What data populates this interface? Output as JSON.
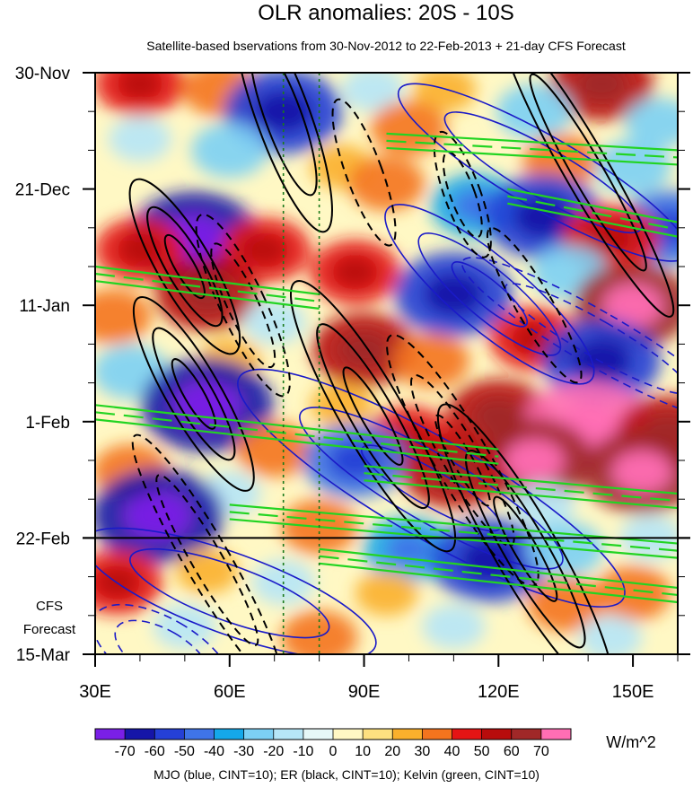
{
  "chart_data": {
    "type": "heatmap",
    "title": "OLR anomalies: 20S - 10S",
    "subtitle": "Satellite-based bservations from 30-Nov-2012 to 22-Feb-2013 + 21-day CFS Forecast",
    "x_tick_labels": [
      "30E",
      "60E",
      "90E",
      "120E",
      "150E"
    ],
    "x_ticks": [
      30,
      60,
      90,
      120,
      150
    ],
    "xlim": [
      30,
      160
    ],
    "y_tick_labels": [
      "30-Nov",
      "21-Dec",
      "11-Jan",
      "1-Feb",
      "22-Feb",
      "15-Mar"
    ],
    "y_ticks": [
      0,
      21,
      42,
      63,
      84,
      105
    ],
    "ylim": [
      0,
      105
    ],
    "forecast_label": [
      "CFS",
      "Forecast"
    ],
    "forecast_start_day": 84,
    "vertical_reference_lines": [
      72,
      80
    ],
    "colorbar": {
      "unit": "W/m^2",
      "tick_labels": [
        "-70",
        "-60",
        "-50",
        "-40",
        "-30",
        "-20",
        "-10",
        "0",
        "10",
        "20",
        "30",
        "40",
        "50",
        "60",
        "70"
      ],
      "colors": [
        "#7a1fe6",
        "#1515a8",
        "#2540d6",
        "#3f74e8",
        "#14a8ea",
        "#7cd0f4",
        "#b6e6f7",
        "#e6f8f8",
        "#fff8c4",
        "#fde080",
        "#fbb02c",
        "#f4741e",
        "#e51414",
        "#b80c0c",
        "#a02828",
        "#ff6eb4"
      ]
    },
    "footer": "MJO (blue, CINT=10); ER (black, CINT=10); Kelvin (green, CINT=10)",
    "contour_series": [
      {
        "name": "MJO",
        "color": "#1a1ac8"
      },
      {
        "name": "ER",
        "color": "#000000"
      },
      {
        "name": "Kelvin",
        "color": "#22d422"
      }
    ],
    "anomaly_blobs": [
      {
        "lon": 40,
        "day": 2,
        "v": 40
      },
      {
        "lon": 58,
        "day": 3,
        "v": 30
      },
      {
        "lon": 72,
        "day": 7,
        "v": -60
      },
      {
        "lon": 92,
        "day": 3,
        "v": -20
      },
      {
        "lon": 108,
        "day": 3,
        "v": 20
      },
      {
        "lon": 143,
        "day": 2,
        "v": 50
      },
      {
        "lon": 128,
        "day": 7,
        "v": -30
      },
      {
        "lon": 156,
        "day": 9,
        "v": -25
      },
      {
        "lon": 100,
        "day": 10,
        "v": 30
      },
      {
        "lon": 40,
        "day": 12,
        "v": -20
      },
      {
        "lon": 60,
        "day": 14,
        "v": -30
      },
      {
        "lon": 85,
        "day": 17,
        "v": 20
      },
      {
        "lon": 134,
        "day": 16,
        "v": 30
      },
      {
        "lon": 150,
        "day": 17,
        "v": -30
      },
      {
        "lon": 95,
        "day": 20,
        "v": 30
      },
      {
        "lon": 115,
        "day": 24,
        "v": -40
      },
      {
        "lon": 130,
        "day": 26,
        "v": -60
      },
      {
        "lon": 158,
        "day": 28,
        "v": -50
      },
      {
        "lon": 52,
        "day": 30,
        "v": -70
      },
      {
        "lon": 40,
        "day": 32,
        "v": 40
      },
      {
        "lon": 68,
        "day": 32,
        "v": 40
      },
      {
        "lon": 145,
        "day": 30,
        "v": 45
      },
      {
        "lon": 88,
        "day": 36,
        "v": 40
      },
      {
        "lon": 110,
        "day": 40,
        "v": -60
      },
      {
        "lon": 136,
        "day": 36,
        "v": -30
      },
      {
        "lon": 55,
        "day": 40,
        "v": 50
      },
      {
        "lon": 150,
        "day": 42,
        "v": 60
      },
      {
        "lon": 34,
        "day": 44,
        "v": 30
      },
      {
        "lon": 70,
        "day": 45,
        "v": -20
      },
      {
        "lon": 90,
        "day": 50,
        "v": 50
      },
      {
        "lon": 128,
        "day": 48,
        "v": 40
      },
      {
        "lon": 105,
        "day": 52,
        "v": 30
      },
      {
        "lon": 143,
        "day": 52,
        "v": -60
      },
      {
        "lon": 38,
        "day": 54,
        "v": -30
      },
      {
        "lon": 60,
        "day": 52,
        "v": 20
      },
      {
        "lon": 55,
        "day": 60,
        "v": -70
      },
      {
        "lon": 85,
        "day": 60,
        "v": 20
      },
      {
        "lon": 120,
        "day": 62,
        "v": 50
      },
      {
        "lon": 140,
        "day": 64,
        "v": 70
      },
      {
        "lon": 158,
        "day": 65,
        "v": 50
      },
      {
        "lon": 100,
        "day": 66,
        "v": 40
      },
      {
        "lon": 70,
        "day": 68,
        "v": 30
      },
      {
        "lon": 88,
        "day": 70,
        "v": -50
      },
      {
        "lon": 128,
        "day": 70,
        "v": 60
      },
      {
        "lon": 152,
        "day": 72,
        "v": 60
      },
      {
        "lon": 110,
        "day": 72,
        "v": 50
      },
      {
        "lon": 38,
        "day": 72,
        "v": 30
      },
      {
        "lon": 60,
        "day": 76,
        "v": -20
      },
      {
        "lon": 44,
        "day": 80,
        "v": -70
      },
      {
        "lon": 130,
        "day": 78,
        "v": -20
      },
      {
        "lon": 80,
        "day": 82,
        "v": 30
      },
      {
        "lon": 100,
        "day": 86,
        "v": -40
      },
      {
        "lon": 118,
        "day": 88,
        "v": -60
      },
      {
        "lon": 135,
        "day": 86,
        "v": -30
      },
      {
        "lon": 154,
        "day": 84,
        "v": -20
      },
      {
        "lon": 35,
        "day": 92,
        "v": 40
      },
      {
        "lon": 55,
        "day": 90,
        "v": 20
      },
      {
        "lon": 72,
        "day": 92,
        "v": -20
      },
      {
        "lon": 95,
        "day": 94,
        "v": 20
      },
      {
        "lon": 135,
        "day": 96,
        "v": 30
      },
      {
        "lon": 150,
        "day": 94,
        "v": 30
      },
      {
        "lon": 50,
        "day": 100,
        "v": -20
      },
      {
        "lon": 110,
        "day": 100,
        "v": -20
      },
      {
        "lon": 145,
        "day": 102,
        "v": -20
      },
      {
        "lon": 80,
        "day": 102,
        "v": 30
      }
    ],
    "mjo_contours": [
      {
        "lon": 130,
        "day": 18,
        "rx": 8,
        "ry": 30,
        "angle": 30,
        "sign": 1,
        "n": 2
      },
      {
        "lon": 118,
        "day": 40,
        "rx": 8,
        "ry": 24,
        "angle": 40,
        "sign": 1,
        "n": 3
      },
      {
        "lon": 142,
        "day": 48,
        "rx": 6,
        "ry": 28,
        "angle": 30,
        "sign": -1,
        "n": 2
      },
      {
        "lon": 105,
        "day": 75,
        "rx": 11,
        "ry": 40,
        "angle": 30,
        "sign": 1,
        "n": 3
      },
      {
        "lon": 60,
        "day": 94,
        "rx": 9,
        "ry": 28,
        "angle": 20,
        "sign": 1,
        "n": 2
      },
      {
        "lon": 45,
        "day": 105,
        "rx": 8,
        "ry": 14,
        "angle": 30,
        "sign": -1,
        "n": 2
      }
    ],
    "er_contours": [
      {
        "lon": 72,
        "day": 8,
        "rx": 6,
        "ry": 22,
        "angle": 70,
        "sign": 1,
        "n": 2
      },
      {
        "lon": 90,
        "day": 18,
        "rx": 4,
        "ry": 14,
        "angle": 70,
        "sign": -1,
        "n": 1
      },
      {
        "lon": 140,
        "day": 18,
        "rx": 5,
        "ry": 30,
        "angle": 60,
        "sign": 1,
        "n": 2
      },
      {
        "lon": 112,
        "day": 22,
        "rx": 4,
        "ry": 12,
        "angle": 70,
        "sign": -1,
        "n": 2
      },
      {
        "lon": 50,
        "day": 35,
        "rx": 6,
        "ry": 18,
        "angle": 60,
        "sign": 1,
        "n": 3
      },
      {
        "lon": 63,
        "day": 42,
        "rx": 5,
        "ry": 18,
        "angle": 65,
        "sign": -1,
        "n": 2
      },
      {
        "lon": 128,
        "day": 42,
        "rx": 4,
        "ry": 16,
        "angle": 60,
        "sign": -1,
        "n": 1
      },
      {
        "lon": 52,
        "day": 58,
        "rx": 6,
        "ry": 20,
        "angle": 60,
        "sign": 1,
        "n": 3
      },
      {
        "lon": 92,
        "day": 62,
        "rx": 7,
        "ry": 28,
        "angle": 60,
        "sign": 1,
        "n": 3
      },
      {
        "lon": 112,
        "day": 70,
        "rx": 6,
        "ry": 26,
        "angle": 60,
        "sign": -1,
        "n": 3
      },
      {
        "lon": 126,
        "day": 86,
        "rx": 7,
        "ry": 30,
        "angle": 60,
        "sign": 1,
        "n": 3
      },
      {
        "lon": 55,
        "day": 88,
        "rx": 5,
        "ry": 26,
        "angle": 60,
        "sign": -1,
        "n": 2
      }
    ],
    "kelvin_bands": [
      {
        "lon0": 95,
        "lon1": 160,
        "day0": 11,
        "day1": 14
      },
      {
        "lon0": 122,
        "lon1": 160,
        "day0": 21,
        "day1": 27
      },
      {
        "lon0": 30,
        "lon1": 80,
        "day0": 35,
        "day1": 40
      },
      {
        "lon0": 30,
        "lon1": 120,
        "day0": 60,
        "day1": 68
      },
      {
        "lon0": 90,
        "lon1": 160,
        "day0": 71,
        "day1": 76
      },
      {
        "lon0": 60,
        "lon1": 160,
        "day0": 78,
        "day1": 85
      },
      {
        "lon0": 80,
        "lon1": 160,
        "day0": 86,
        "day1": 93
      }
    ]
  }
}
